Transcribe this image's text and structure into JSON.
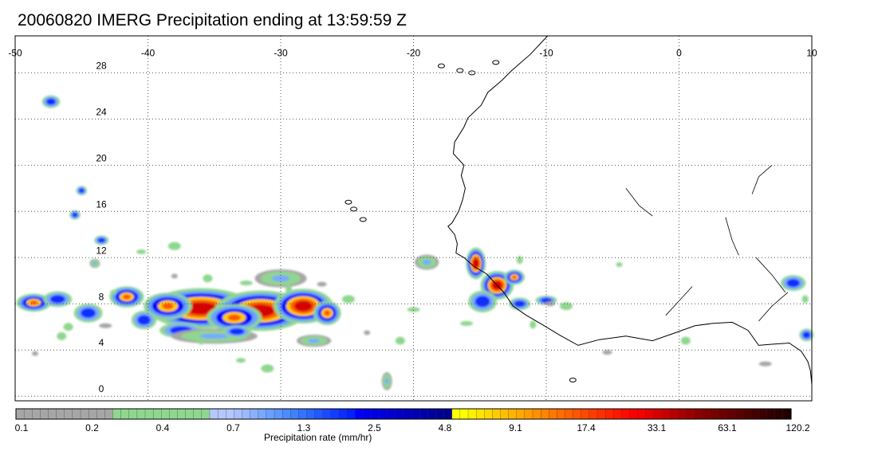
{
  "title": "20060820 IMERG Precipitation ending at 13:59:59 Z",
  "map": {
    "lon_range": [
      -50,
      10
    ],
    "lat_range": [
      -0.4,
      31.2
    ],
    "lon_ticks": [
      {
        "value": -50,
        "label": "-50"
      },
      {
        "value": -40,
        "label": "-40"
      },
      {
        "value": -30,
        "label": "-30"
      },
      {
        "value": -20,
        "label": "-20"
      },
      {
        "value": -10,
        "label": "-10"
      },
      {
        "value": 0,
        "label": "0"
      },
      {
        "value": 10,
        "label": "10"
      }
    ],
    "lat_ticks": [
      {
        "value": 28,
        "label": "28"
      },
      {
        "value": 24,
        "label": "24"
      },
      {
        "value": 20,
        "label": "20"
      },
      {
        "value": 16,
        "label": "16"
      },
      {
        "value": 12,
        "label": "12"
      },
      {
        "value": 8,
        "label": "8"
      },
      {
        "value": 4,
        "label": "4"
      },
      {
        "value": 0,
        "label": "0"
      }
    ],
    "grid": "dotted",
    "coastline_color": "#000000"
  },
  "colorbar": {
    "title": "Precipitation rate (mm/hr)",
    "labels": [
      "0.1",
      "0.2",
      "0.4",
      "0.7",
      "1.3",
      "2.5",
      "4.8",
      "9.1",
      "17.4",
      "33.1",
      "63.1",
      "120.2"
    ],
    "colors": [
      "#a6a6a6",
      "#a6a6a6",
      "#a6a6a6",
      "#a6a6a6",
      "#a6a6a6",
      "#a6a6a6",
      "#a6a6a6",
      "#a6a6a6",
      "#a6a6a6",
      "#a6a6a6",
      "#a6a6a6",
      "#a6a6a6",
      "#8fd68f",
      "#8fd68f",
      "#8fd68f",
      "#8fd68f",
      "#8fd68f",
      "#8fd68f",
      "#8fd68f",
      "#8fd68f",
      "#8fd68f",
      "#8fd68f",
      "#8fd68f",
      "#8fd68f",
      "#b4c8ff",
      "#b4c8ff",
      "#b4c8ff",
      "#a8c0ff",
      "#9ab8ff",
      "#8cb0ff",
      "#7aa8ff",
      "#6aa0ff",
      "#5a98ff",
      "#4c8cff",
      "#3f80ff",
      "#3374ff",
      "#2a66ff",
      "#2258ff",
      "#1a4aff",
      "#123cff",
      "#0a2eff",
      "#0420ff",
      "#0000ff",
      "#0000f0",
      "#0000e6",
      "#0000dc",
      "#0000d2",
      "#0000c8",
      "#0000be",
      "#0000b4",
      "#0000aa",
      "#0000a0",
      "#000096",
      "#00008c",
      "#ffff00",
      "#ffff00",
      "#fff000",
      "#ffe400",
      "#ffd800",
      "#ffcc00",
      "#ffbf00",
      "#ffb400",
      "#ffa800",
      "#ff9c00",
      "#ff9000",
      "#ff8400",
      "#ff7800",
      "#ff6c00",
      "#ff6000",
      "#ff5400",
      "#ff4800",
      "#ff3c00",
      "#ff3000",
      "#ff2400",
      "#ff1800",
      "#ff0c00",
      "#ff0000",
      "#f50000",
      "#e60000",
      "#d70000",
      "#c80000",
      "#b90000",
      "#aa0000",
      "#9b0000",
      "#8c0000",
      "#820000",
      "#780000",
      "#6e0000",
      "#640000",
      "#5a0000",
      "#500000",
      "#460000",
      "#3c0000",
      "#320000",
      "#2a0000",
      "#220000"
    ]
  }
}
